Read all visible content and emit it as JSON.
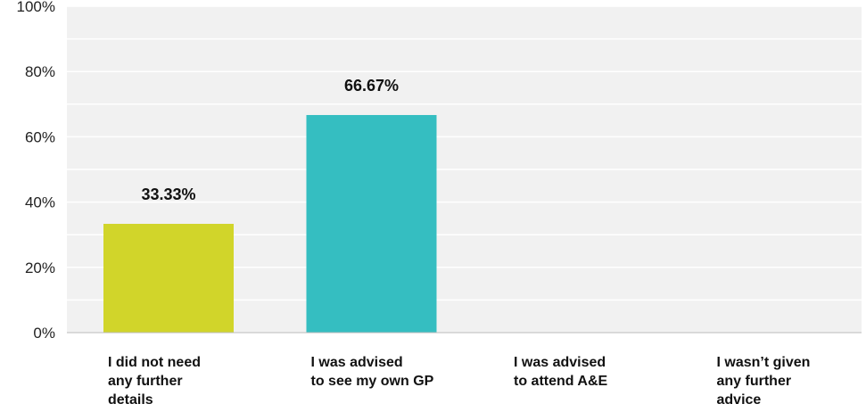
{
  "chart_data": {
    "type": "bar",
    "title": "",
    "xlabel": "",
    "ylabel": "",
    "ylim": [
      0,
      100
    ],
    "yticks": [
      0,
      20,
      40,
      60,
      80,
      100
    ],
    "ytick_format": "%",
    "grid": true,
    "legend": "none",
    "categories": [
      [
        "I did not need",
        "any further",
        "details"
      ],
      [
        "I was advised",
        "to see my own GP"
      ],
      [
        "I was advised",
        "to attend A&E"
      ],
      [
        "I wasn’t given",
        "any further",
        "advice"
      ]
    ],
    "values": [
      33.33,
      66.67,
      0,
      0
    ],
    "data_labels": [
      "33.33%",
      "66.67%",
      "",
      ""
    ],
    "colors": {
      "bars": [
        "#d1d52a",
        "#35bec1",
        "#35bec1",
        "#35bec1"
      ],
      "plot_background": "#f1f1f1",
      "grid": "#ffffff",
      "axis": "#bbbbbb"
    }
  }
}
